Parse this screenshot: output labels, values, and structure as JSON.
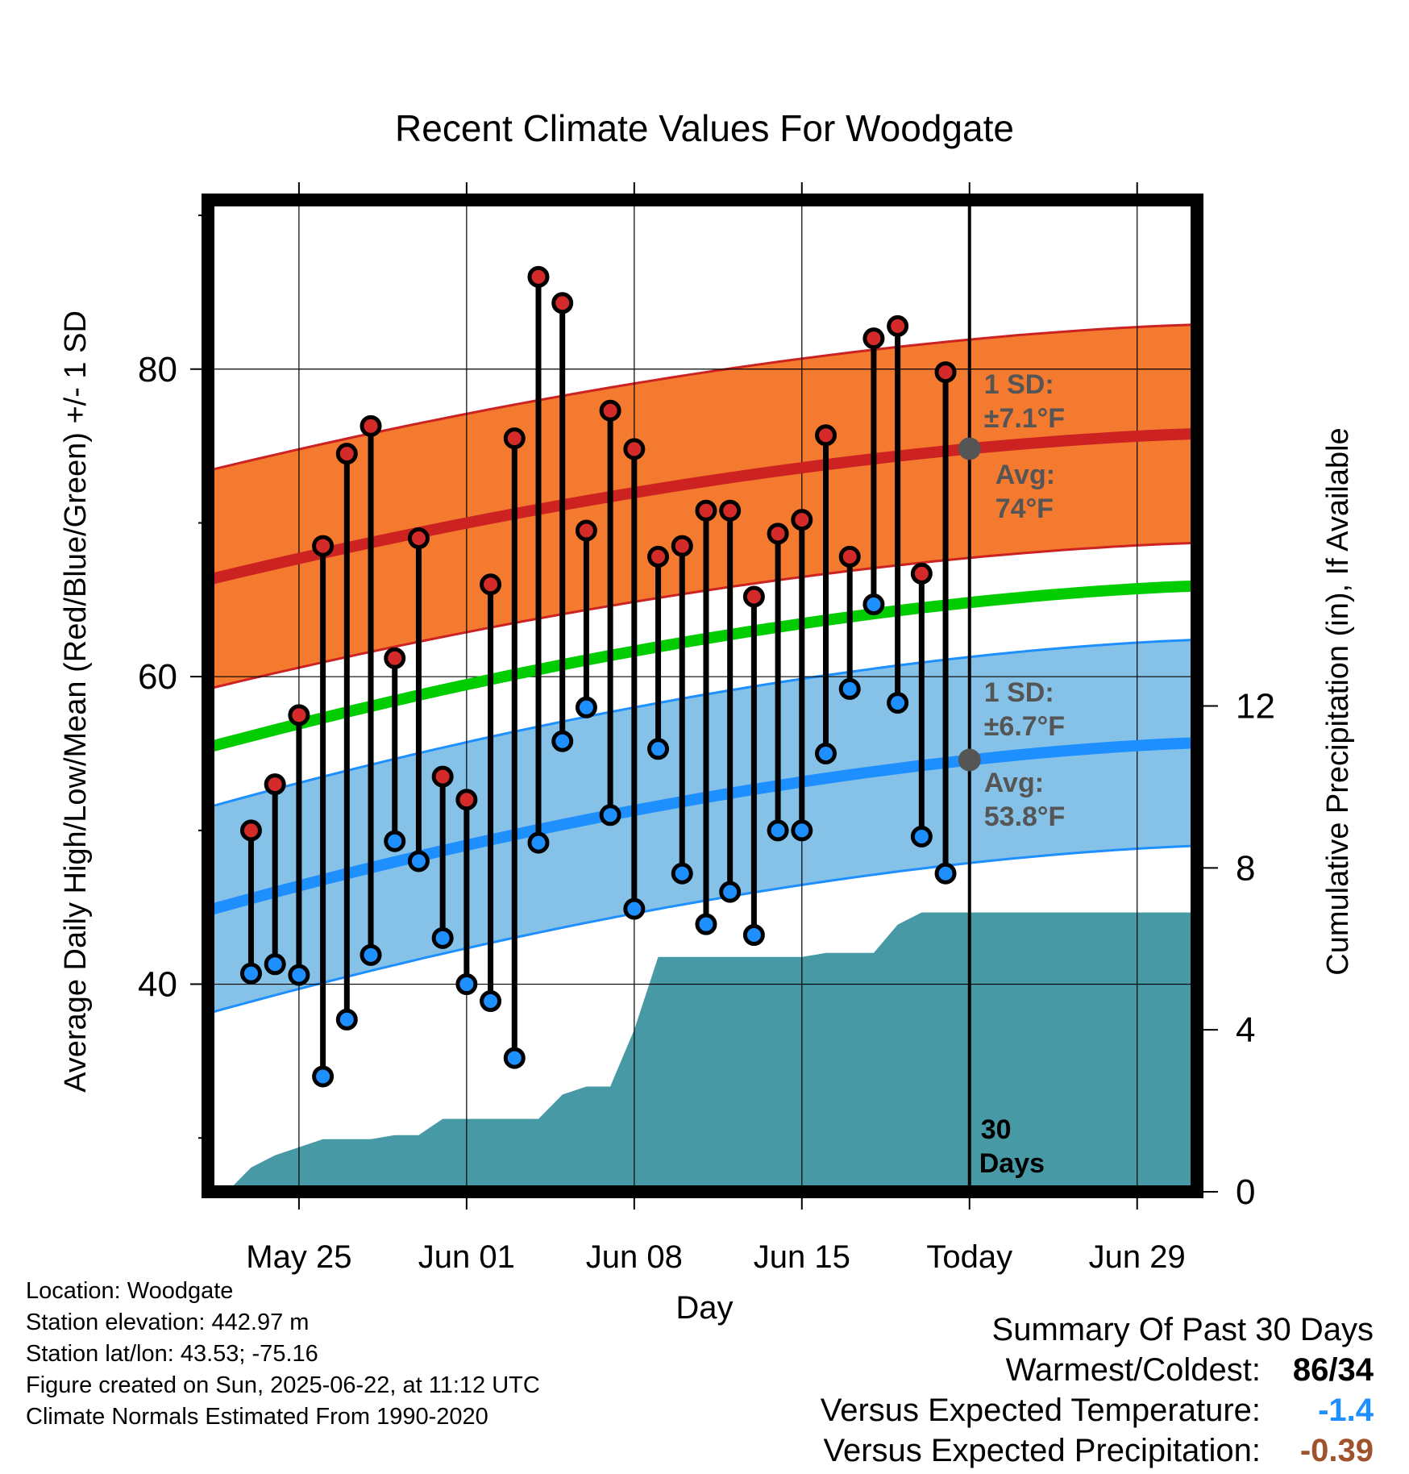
{
  "chart_data": {
    "type": "line",
    "title": "Recent Climate Values For Woodgate",
    "xlabel": "Day",
    "ylabel_left": "Average Daily High/Low/Mean (Red/Blue/Green) +/- 1 SD",
    "ylabel_right": "Cumulative Precipitation (in), If Available",
    "x_tick_labels": [
      "May 25",
      "Jun 01",
      "Jun 08",
      "Jun 15",
      "Today",
      "Jun 29"
    ],
    "x_tick_days": [
      3,
      10,
      17,
      24,
      31,
      38
    ],
    "xlim": [
      -0.8,
      40.5
    ],
    "left_ylim": [
      26.5,
      91
    ],
    "left_ticks": [
      40,
      60,
      80
    ],
    "right_ylim": [
      0,
      24.5
    ],
    "right_ticks": [
      0,
      4,
      8,
      12
    ],
    "today_day": 31,
    "days": [
      1,
      2,
      3,
      4,
      5,
      6,
      7,
      8,
      9,
      10,
      11,
      12,
      13,
      14,
      15,
      16,
      17,
      18,
      19,
      20,
      21,
      22,
      23,
      24,
      25,
      26,
      27,
      28,
      29,
      30
    ],
    "daily_high": [
      50,
      53,
      57.5,
      68.5,
      74.5,
      76.3,
      61.2,
      69,
      53.5,
      52,
      66,
      75.5,
      86,
      84.3,
      69.5,
      77.3,
      74.8,
      67.8,
      68.5,
      70.8,
      70.8,
      65.2,
      69.3,
      70.2,
      75.7,
      67.8,
      82,
      82.8,
      66.7,
      79.8
    ],
    "daily_low": [
      40.7,
      41.3,
      40.6,
      34,
      37.7,
      41.9,
      49.3,
      48,
      43,
      40,
      38.9,
      35.2,
      49.2,
      55.8,
      58,
      51,
      44.9,
      55.3,
      47.2,
      43.9,
      46,
      43.2,
      50,
      50,
      55,
      59.2,
      64.7,
      58.3,
      49.6,
      47.2
    ],
    "series": [
      {
        "name": "Average High",
        "start": 66.3,
        "end": 75.8,
        "sd": 7.1
      },
      {
        "name": "Average Mean",
        "start": 55.4,
        "end": 65.9
      },
      {
        "name": "Average Low",
        "start": 44.8,
        "end": 55.7,
        "sd": 6.7
      }
    ],
    "precip_x": [
      -0.8,
      0,
      1,
      2,
      3,
      4,
      5,
      6,
      7,
      8,
      9,
      10,
      11,
      12,
      13,
      14,
      15,
      16,
      17,
      18,
      19,
      20,
      21,
      22,
      23,
      24,
      25,
      26,
      27,
      28,
      29,
      30,
      31,
      40.5
    ],
    "precip_cum": [
      0,
      0,
      0.6,
      0.9,
      1.1,
      1.3,
      1.3,
      1.3,
      1.4,
      1.4,
      1.8,
      1.8,
      1.8,
      1.8,
      1.8,
      2.4,
      2.6,
      2.6,
      4.0,
      5.8,
      5.8,
      5.8,
      5.8,
      5.8,
      5.8,
      5.8,
      5.9,
      5.9,
      5.9,
      6.6,
      6.9,
      6.9,
      6.9,
      6.9
    ],
    "annotations": {
      "high_sd_line1": "1 SD:",
      "high_sd_line2": "±7.1°F",
      "high_avg_line1": "Avg:",
      "high_avg_line2": "74°F",
      "low_sd_line1": "1 SD:",
      "low_sd_line2": "±6.7°F",
      "low_avg_line1": "Avg:",
      "low_avg_line2": "53.8°F",
      "days_line1": "30",
      "days_line2": "Days"
    },
    "colors": {
      "high_band": "#f47a30",
      "high_line": "#cc2222",
      "mean_line": "#00cc00",
      "low_band": "#86c2e8",
      "low_line": "#1e8fff",
      "precip_fill": "#479aa5",
      "annotation": "#555555"
    }
  },
  "info": {
    "location": "Location: Woodgate",
    "elevation": "Station elevation: 442.97 m",
    "latlon": "Station lat/lon: 43.53; -75.16",
    "created": "Figure created on Sun, 2025-06-22, at 11:12 UTC",
    "normals": "Climate Normals Estimated From 1990-2020"
  },
  "summary": {
    "title": "Summary Of Past 30 Days",
    "warmest_coldest_label": "Warmest/Coldest:",
    "warmest": "86",
    "separator": "/",
    "coldest": "34",
    "temp_label": "Versus Expected Temperature:",
    "temp_value": "-1.4",
    "temp_color": "#1e8fff",
    "precip_label": "Versus Expected Precipitation:",
    "precip_value": "-0.39",
    "precip_color": "#a0522d"
  }
}
